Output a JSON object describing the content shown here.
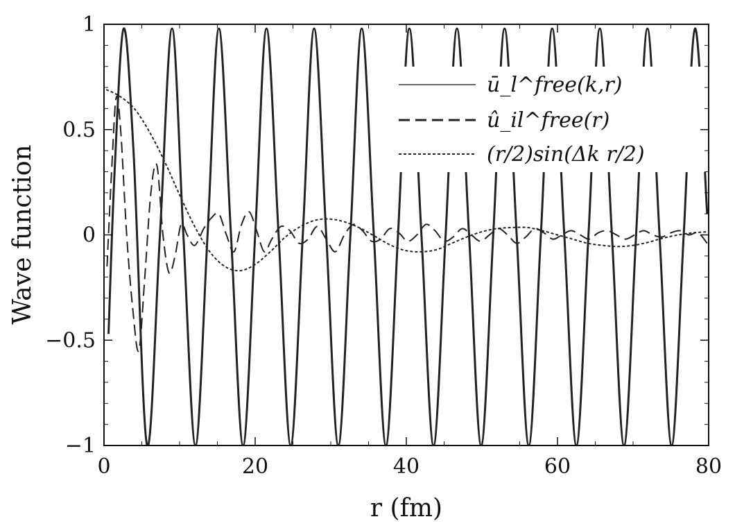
{
  "chart_data": {
    "type": "line",
    "xlabel": "r (fm)",
    "ylabel": "Wave function",
    "xlim": [
      0,
      80
    ],
    "ylim": [
      -1,
      1
    ],
    "x_ticks": [
      0,
      20,
      40,
      60,
      80
    ],
    "x_tick_labels": [
      "0",
      "20",
      "40",
      "60",
      "80"
    ],
    "y_ticks": [
      -1,
      -0.5,
      0,
      0.5,
      1
    ],
    "y_tick_labels": [
      "−1",
      "−0.5",
      "0",
      "0.5",
      "1"
    ],
    "grid": false,
    "legend_position": "top-right",
    "series": [
      {
        "name": "ū_l^free(k,r)",
        "style": "solid",
        "color": "#222222",
        "x": [
          0.6,
          1.4,
          2.6,
          3.9,
          5.7,
          7.4,
          9.0,
          10.5,
          12.1,
          13.7,
          15.2,
          16.8,
          18.4,
          20.0,
          21.5,
          23.1,
          24.7,
          26.3,
          27.8,
          29.4,
          31.0,
          32.6,
          34.1,
          35.7,
          37.3,
          38.9,
          40.4,
          42.0,
          43.6,
          45.2,
          46.7,
          48.3,
          49.9,
          51.5,
          53.0,
          54.6,
          56.2,
          57.8,
          59.3,
          60.9,
          62.5,
          64.1,
          65.6,
          67.2,
          68.8,
          70.4,
          71.9,
          73.5,
          75.1,
          76.7,
          78.2,
          79.8
        ],
        "y": [
          -0.47,
          0.3,
          0.98,
          0.4,
          -1.0,
          0.0,
          0.98,
          0.0,
          -1.0,
          0.0,
          0.98,
          0.0,
          -1.0,
          0.0,
          0.98,
          0.0,
          -1.0,
          0.0,
          0.98,
          0.0,
          -1.0,
          0.0,
          0.98,
          0.0,
          -1.0,
          0.0,
          0.98,
          0.0,
          -1.0,
          0.0,
          0.98,
          0.0,
          -1.0,
          0.0,
          0.98,
          0.0,
          -1.0,
          0.0,
          0.98,
          0.0,
          -1.0,
          0.0,
          0.98,
          0.0,
          -1.0,
          0.0,
          0.98,
          0.0,
          -1.0,
          0.0,
          0.98,
          0.1
        ]
      },
      {
        "name": "û_il^free(r)",
        "style": "dashed",
        "color": "#222222",
        "x": [
          0.4,
          1.0,
          1.6,
          2.2,
          3.0,
          3.8,
          4.6,
          5.4,
          6.2,
          7.0,
          7.8,
          8.6,
          9.4,
          10.2,
          11.0,
          12.0,
          13.2,
          14.2,
          15.2,
          16.2,
          17.2,
          18.2,
          19.2,
          20.2,
          21.2,
          22.2,
          23.4,
          24.6,
          25.8,
          27.0,
          28.2,
          29.4,
          30.6,
          31.8,
          33.0,
          34.2,
          35.4,
          36.6,
          37.8,
          39.0,
          40.2,
          41.4,
          42.6,
          43.8,
          45.0,
          46.2,
          47.4,
          48.6,
          49.8,
          51.0,
          52.2,
          53.4,
          54.6,
          55.8,
          57.0,
          58.2,
          59.4,
          60.6,
          61.8,
          63.0,
          64.2,
          65.4,
          66.6,
          67.8,
          69.0,
          70.2,
          71.4,
          72.6,
          73.8,
          75.0,
          76.2,
          77.4,
          78.6,
          79.8
        ],
        "y": [
          -0.15,
          0.3,
          0.65,
          0.5,
          0.0,
          -0.35,
          -0.55,
          -0.2,
          0.2,
          0.33,
          0.0,
          -0.18,
          -0.1,
          0.05,
          0.0,
          -0.05,
          0.03,
          0.08,
          0.1,
          0.0,
          -0.08,
          0.05,
          0.11,
          0.02,
          -0.08,
          -0.02,
          0.04,
          0.02,
          -0.04,
          -0.02,
          0.04,
          -0.02,
          -0.08,
          0.0,
          0.05,
          0.02,
          -0.03,
          -0.02,
          0.03,
          0.01,
          -0.03,
          0.0,
          0.05,
          0.02,
          -0.03,
          -0.01,
          0.03,
          0.0,
          -0.03,
          0.0,
          0.03,
          0.0,
          -0.04,
          -0.01,
          0.03,
          0.01,
          -0.02,
          0.0,
          0.02,
          0.0,
          -0.02,
          0.01,
          0.02,
          0.0,
          -0.02,
          0.0,
          0.02,
          0.0,
          -0.01,
          0.01,
          0.02,
          0.0,
          0.01,
          -0.04
        ]
      },
      {
        "name": "(r/2)sin(Δk r/2)",
        "style": "dotted",
        "color": "#222222",
        "x": [
          0.3,
          2.0,
          4.0,
          6.0,
          8.0,
          10.0,
          12.0,
          14.0,
          16.0,
          18.0,
          20.0,
          22.0,
          24.0,
          26.0,
          28.0,
          30.0,
          32.0,
          34.0,
          36.0,
          38.0,
          40.0,
          42.0,
          44.0,
          46.0,
          48.0,
          50.0,
          52.0,
          54.0,
          56.0,
          58.0,
          60.0,
          62.0,
          64.0,
          66.0,
          68.0,
          70.0,
          72.0,
          74.0,
          76.0,
          78.0,
          80.0
        ],
        "y": [
          0.69,
          0.66,
          0.6,
          0.49,
          0.35,
          0.19,
          0.04,
          -0.08,
          -0.15,
          -0.17,
          -0.14,
          -0.08,
          -0.01,
          0.04,
          0.07,
          0.075,
          0.06,
          0.03,
          -0.01,
          -0.05,
          -0.075,
          -0.08,
          -0.07,
          -0.04,
          -0.01,
          0.015,
          0.03,
          0.035,
          0.035,
          0.02,
          0.0,
          -0.02,
          -0.04,
          -0.05,
          -0.055,
          -0.05,
          -0.035,
          -0.015,
          0.0,
          0.01,
          0.015
        ]
      }
    ]
  }
}
